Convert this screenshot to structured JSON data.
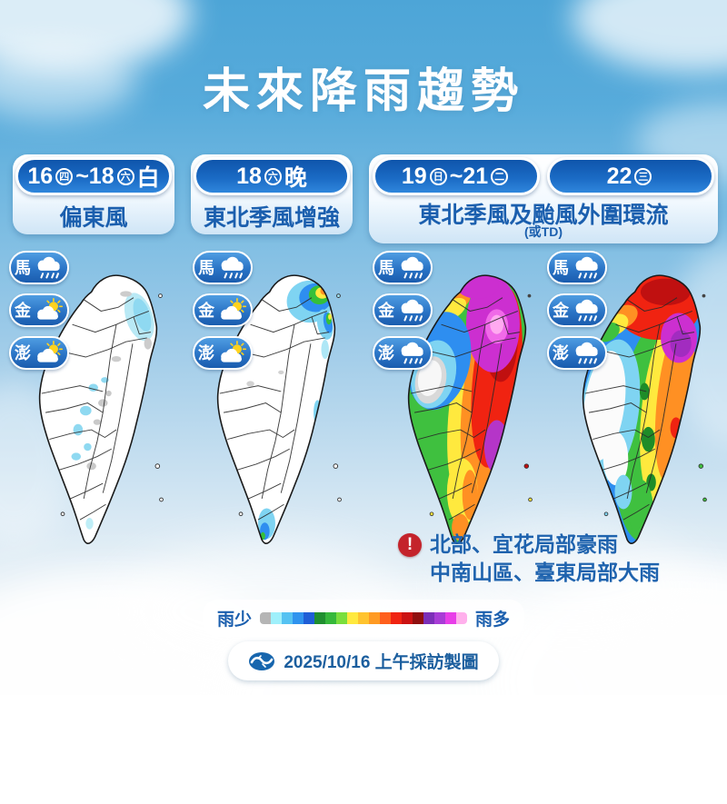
{
  "title": "未來降雨趨勢",
  "cards": [
    {
      "pill": {
        "day_start": "16",
        "wk_start": "四",
        "tilde": "~",
        "day_end": "18",
        "wk_end": "六",
        "suffix": "白"
      },
      "subtitle": "偏東風"
    },
    {
      "pill": {
        "day": "18",
        "wk": "六",
        "suffix": "晚"
      },
      "subtitle": "東北季風增強"
    },
    {
      "pill_a": {
        "day_start": "19",
        "wk_start": "日",
        "tilde": "~",
        "day_end": "21",
        "wk_end": "二"
      },
      "pill_b": {
        "day": "22",
        "wk": "三"
      },
      "subtitle": "東北季風及颱風外圍環流",
      "subtitle_note": "(或TD)"
    }
  ],
  "stations": {
    "col1": [
      {
        "label": "馬",
        "weather": "rain"
      },
      {
        "label": "金",
        "weather": "partly-sunny"
      },
      {
        "label": "澎",
        "weather": "partly-sunny"
      }
    ],
    "col2": [
      {
        "label": "馬",
        "weather": "rain"
      },
      {
        "label": "金",
        "weather": "partly-sunny"
      },
      {
        "label": "澎",
        "weather": "partly-sunny"
      }
    ],
    "col3": [
      {
        "label": "馬",
        "weather": "rain"
      },
      {
        "label": "金",
        "weather": "rain"
      },
      {
        "label": "澎",
        "weather": "rain"
      }
    ],
    "col4": [
      {
        "label": "馬",
        "weather": "rain"
      },
      {
        "label": "金",
        "weather": "rain"
      },
      {
        "label": "澎",
        "weather": "rain"
      }
    ]
  },
  "maps": [
    {
      "rainfall_pattern": "mostly dry white island; pale-cyan showers along northeast coast, scattered cyan/gray spots in central mountains"
    },
    {
      "rainfall_pattern": "rain concentrated at north tip and northeast coast (cyan-blue-green-yellow-orange core); small cyan streaks on east coast and southern tip"
    },
    {
      "rainfall_pattern": "island-wide rain; magenta/pink extremes over north and northeast, purple cell on east coast, red/orange east side, yellow-green center-south, white-gray dry patch central-west"
    },
    {
      "rainfall_pattern": "red/dark-red over north with magenta cell northeast, orange-yellow east coast, green and blue center-south, white dry zone central-west"
    }
  ],
  "warning": {
    "line1": "北部、宜花局部豪雨",
    "line2": "中南山區、臺東局部大雨",
    "icon_color": "#c4232b"
  },
  "legend": {
    "less_label": "雨少",
    "more_label": "雨多",
    "colors": [
      "#b5b5b5",
      "#9ff0fb",
      "#55c2f2",
      "#2f93ee",
      "#1f5ed6",
      "#1f8f2f",
      "#35b83a",
      "#7ade3c",
      "#ffe93e",
      "#ffc32e",
      "#ff9a23",
      "#ff5f1c",
      "#f02311",
      "#cb1212",
      "#8f0f0f",
      "#7c2fb8",
      "#a83cd6",
      "#e83ee8",
      "#ffb0ec"
    ]
  },
  "footer": {
    "caption": "2025/10/16 上午採訪製圖",
    "logo": "set-news-logo"
  },
  "theme": {
    "pill_blue": "#1a6ac4",
    "text_blue": "#1b5fae",
    "sky_blue": "#4da5d7"
  }
}
